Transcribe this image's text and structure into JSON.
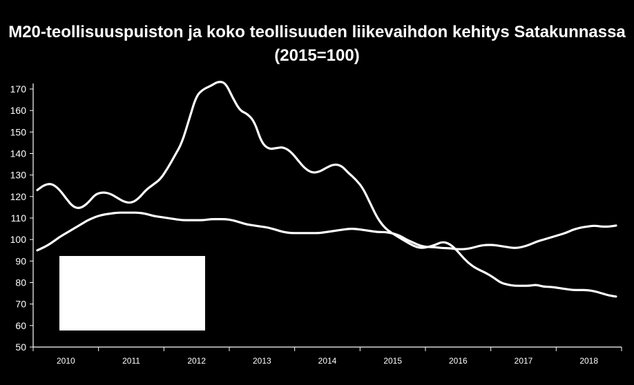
{
  "chart_data": {
    "type": "line",
    "title": "M20-teollisuuspuiston ja koko teollisuuden liikevaihdon kehitys Satakunnassa",
    "subtitle": "(2015=100)",
    "xlabel": "",
    "ylabel": "",
    "ylim": [
      50,
      170
    ],
    "yticks": [
      "50",
      "60",
      "70",
      "80",
      "90",
      "100",
      "110",
      "120",
      "130",
      "140",
      "150",
      "160",
      "170"
    ],
    "year_labels": [
      "2010",
      "2011",
      "2012",
      "2013",
      "2014",
      "2015",
      "2016",
      "2017",
      "2018"
    ],
    "grid": false,
    "line_color": "#ffffff",
    "background": "#000000",
    "series": [
      {
        "values": [
          [
            2009.9,
            123
          ],
          [
            2010.0,
            125.5
          ],
          [
            2010.1,
            126
          ],
          [
            2010.2,
            123.5
          ],
          [
            2010.3,
            119
          ],
          [
            2010.4,
            115
          ],
          [
            2010.5,
            114.5
          ],
          [
            2010.6,
            117
          ],
          [
            2010.7,
            121
          ],
          [
            2010.8,
            122
          ],
          [
            2010.9,
            121.5
          ],
          [
            2011.0,
            119.5
          ],
          [
            2011.1,
            117.5
          ],
          [
            2011.2,
            117
          ],
          [
            2011.3,
            119
          ],
          [
            2011.4,
            123
          ],
          [
            2011.5,
            125.5
          ],
          [
            2011.6,
            128
          ],
          [
            2011.7,
            133
          ],
          [
            2011.8,
            139
          ],
          [
            2011.9,
            145
          ],
          [
            2012.0,
            156
          ],
          [
            2012.1,
            167
          ],
          [
            2012.2,
            170
          ],
          [
            2012.3,
            171.5
          ],
          [
            2012.4,
            173.5
          ],
          [
            2012.5,
            173
          ],
          [
            2012.6,
            166
          ],
          [
            2012.7,
            160
          ],
          [
            2012.8,
            158.5
          ],
          [
            2012.9,
            155
          ],
          [
            2013.0,
            145
          ],
          [
            2013.1,
            142
          ],
          [
            2013.2,
            142.5
          ],
          [
            2013.3,
            143
          ],
          [
            2013.4,
            141
          ],
          [
            2013.5,
            137
          ],
          [
            2013.6,
            133
          ],
          [
            2013.7,
            131
          ],
          [
            2013.8,
            131.5
          ],
          [
            2013.9,
            133.5
          ],
          [
            2014.0,
            135
          ],
          [
            2014.1,
            134.5
          ],
          [
            2014.2,
            131
          ],
          [
            2014.3,
            128
          ],
          [
            2014.4,
            124
          ],
          [
            2014.5,
            117
          ],
          [
            2014.6,
            110
          ],
          [
            2014.7,
            105.5
          ],
          [
            2014.8,
            103
          ],
          [
            2014.9,
            101
          ],
          [
            2015.0,
            99
          ],
          [
            2015.1,
            97
          ],
          [
            2015.2,
            96
          ],
          [
            2015.3,
            96.5
          ],
          [
            2015.4,
            97.5
          ],
          [
            2015.5,
            99
          ],
          [
            2015.6,
            98
          ],
          [
            2015.7,
            95
          ],
          [
            2015.8,
            91
          ],
          [
            2015.9,
            88
          ],
          [
            2016.0,
            86
          ],
          [
            2016.1,
            84.5
          ],
          [
            2016.2,
            82.5
          ],
          [
            2016.3,
            80
          ],
          [
            2016.4,
            79
          ],
          [
            2016.5,
            78.5
          ],
          [
            2016.6,
            78.5
          ],
          [
            2016.7,
            78.5
          ],
          [
            2016.8,
            79
          ],
          [
            2016.9,
            78
          ],
          [
            2017.0,
            78
          ],
          [
            2017.1,
            77.5
          ],
          [
            2017.2,
            77
          ],
          [
            2017.3,
            76.5
          ],
          [
            2017.4,
            76.5
          ],
          [
            2017.5,
            76.5
          ],
          [
            2017.6,
            76
          ],
          [
            2017.7,
            75
          ],
          [
            2017.8,
            74
          ],
          [
            2017.9,
            73.5
          ]
        ]
      },
      {
        "values": [
          [
            2009.9,
            95
          ],
          [
            2010.0,
            96.5
          ],
          [
            2010.1,
            98.5
          ],
          [
            2010.2,
            101
          ],
          [
            2010.3,
            103
          ],
          [
            2010.4,
            105
          ],
          [
            2010.5,
            107
          ],
          [
            2010.6,
            109
          ],
          [
            2010.7,
            110.5
          ],
          [
            2010.8,
            111.5
          ],
          [
            2010.9,
            112
          ],
          [
            2011.0,
            112.5
          ],
          [
            2011.1,
            112.5
          ],
          [
            2011.2,
            112.5
          ],
          [
            2011.3,
            112.5
          ],
          [
            2011.4,
            112
          ],
          [
            2011.5,
            111
          ],
          [
            2011.6,
            110.5
          ],
          [
            2011.7,
            110
          ],
          [
            2011.8,
            109.5
          ],
          [
            2011.9,
            109
          ],
          [
            2012.0,
            109
          ],
          [
            2012.1,
            109
          ],
          [
            2012.2,
            109
          ],
          [
            2012.3,
            109.5
          ],
          [
            2012.4,
            109.5
          ],
          [
            2012.5,
            109.5
          ],
          [
            2012.6,
            109
          ],
          [
            2012.7,
            108
          ],
          [
            2012.8,
            107
          ],
          [
            2012.9,
            106.5
          ],
          [
            2013.0,
            106
          ],
          [
            2013.1,
            105.5
          ],
          [
            2013.2,
            104.5
          ],
          [
            2013.3,
            103.5
          ],
          [
            2013.4,
            103
          ],
          [
            2013.5,
            103
          ],
          [
            2013.6,
            103
          ],
          [
            2013.7,
            103
          ],
          [
            2013.8,
            103
          ],
          [
            2013.9,
            103.5
          ],
          [
            2014.0,
            104
          ],
          [
            2014.1,
            104.5
          ],
          [
            2014.2,
            105
          ],
          [
            2014.3,
            105
          ],
          [
            2014.4,
            104.5
          ],
          [
            2014.5,
            104
          ],
          [
            2014.6,
            103.5
          ],
          [
            2014.7,
            103.5
          ],
          [
            2014.8,
            103
          ],
          [
            2014.9,
            102
          ],
          [
            2015.0,
            100
          ],
          [
            2015.1,
            98.5
          ],
          [
            2015.2,
            97
          ],
          [
            2015.3,
            96.5
          ],
          [
            2015.4,
            96.5
          ],
          [
            2015.5,
            96
          ],
          [
            2015.6,
            96
          ],
          [
            2015.7,
            95.5
          ],
          [
            2015.8,
            95.5
          ],
          [
            2015.9,
            96
          ],
          [
            2016.0,
            97
          ],
          [
            2016.1,
            97.5
          ],
          [
            2016.2,
            97.5
          ],
          [
            2016.3,
            97
          ],
          [
            2016.4,
            96.5
          ],
          [
            2016.5,
            96
          ],
          [
            2016.6,
            96.5
          ],
          [
            2016.7,
            97.5
          ],
          [
            2016.8,
            99
          ],
          [
            2016.9,
            100
          ],
          [
            2017.0,
            101
          ],
          [
            2017.1,
            102
          ],
          [
            2017.2,
            103
          ],
          [
            2017.3,
            104.5
          ],
          [
            2017.4,
            105.5
          ],
          [
            2017.5,
            106
          ],
          [
            2017.6,
            106.5
          ],
          [
            2017.7,
            106
          ],
          [
            2017.8,
            106
          ],
          [
            2017.9,
            106.5
          ]
        ]
      }
    ]
  }
}
